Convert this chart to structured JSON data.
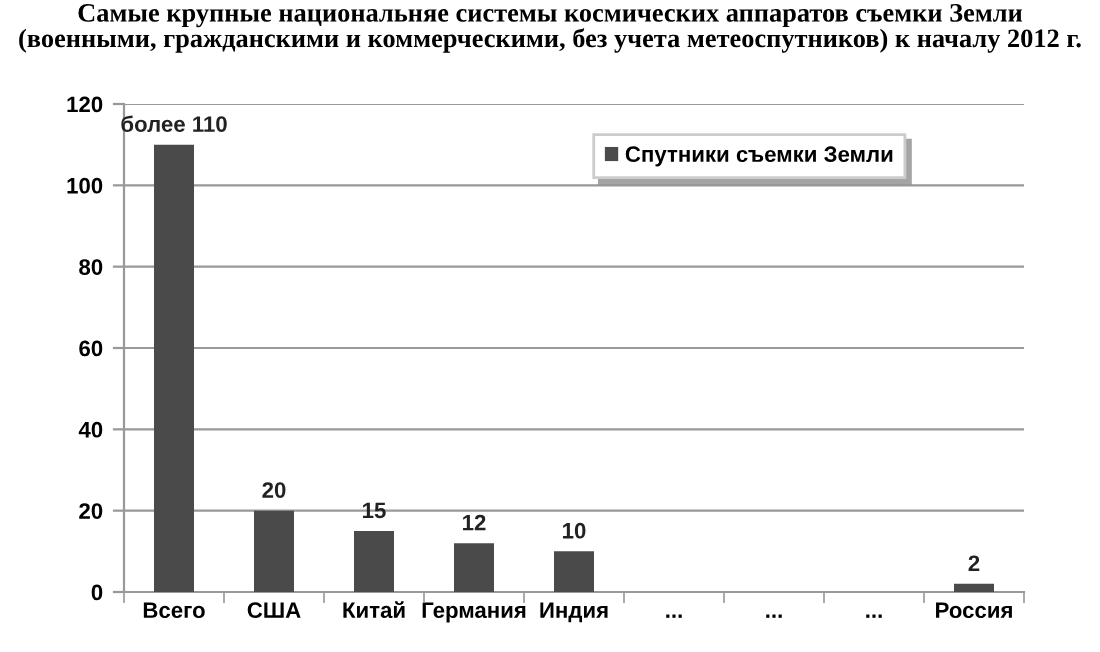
{
  "chart_data": {
    "type": "bar",
    "title": "Самые крупные национальняе системы космических аппаратов съемки Земли\n(военными, гражданскими и коммерческими, без учета метеоспутников) к началу 2012 г.",
    "categories": [
      "Всего",
      "США",
      "Китай",
      "Германия",
      "Индия",
      "...",
      "...",
      "...",
      "Россия"
    ],
    "series": [
      {
        "name": "Спутники съемки Земли",
        "color": "#4a4a4a",
        "values": [
          110,
          20,
          15,
          12,
          10,
          null,
          null,
          null,
          2
        ],
        "value_labels": [
          "более 110",
          "20",
          "15",
          "12",
          "10",
          null,
          null,
          null,
          "2"
        ]
      }
    ],
    "ylim": [
      0,
      120
    ],
    "yticks": [
      0,
      20,
      40,
      60,
      80,
      100,
      120
    ],
    "grid": "y",
    "legend": "top right"
  }
}
